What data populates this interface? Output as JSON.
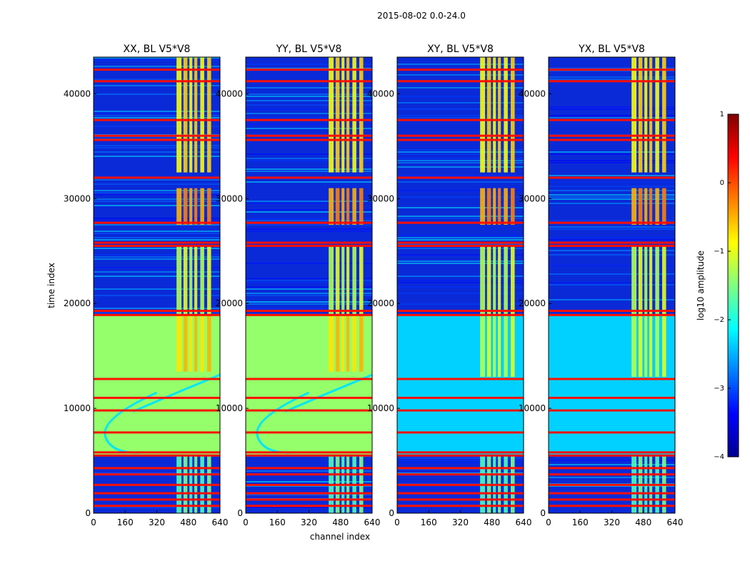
{
  "chart_data": {
    "type": "heatmap",
    "suptitle": "2015-08-02 0.0-24.0",
    "xlabel": "channel index",
    "ylabel": "time index",
    "xlim": [
      0,
      640
    ],
    "ylim": [
      0,
      43500
    ],
    "xticks": [
      "0",
      "160",
      "320",
      "480",
      "640"
    ],
    "yticks": [
      "0",
      "10000",
      "20000",
      "30000",
      "40000"
    ],
    "panels": [
      {
        "title": "XX, BL V5*V8",
        "kind": "parallel"
      },
      {
        "title": "YY, BL V5*V8",
        "kind": "parallel"
      },
      {
        "title": "XY, BL V5*V8",
        "kind": "cross"
      },
      {
        "title": "YX, BL V5*V8",
        "kind": "cross"
      }
    ],
    "colorbar": {
      "label": "log10 amplitude",
      "range": [
        -4,
        1
      ],
      "ticks": [
        "1",
        "0",
        "−1",
        "−2",
        "−3",
        "−4"
      ],
      "colormap": "jet"
    },
    "flagged_time_bands": [
      700,
      1300,
      1900,
      2700,
      3700,
      4300,
      5500,
      5800,
      7700,
      9800,
      11000,
      12800,
      18900,
      19300,
      25500,
      25800,
      27700,
      32000,
      35600,
      36000,
      37500,
      41200,
      42300
    ],
    "bright_channel_columns": [
      [
        420,
        445
      ],
      [
        455,
        475
      ],
      [
        485,
        500
      ],
      [
        510,
        525
      ],
      [
        540,
        560
      ],
      [
        575,
        595
      ]
    ]
  }
}
